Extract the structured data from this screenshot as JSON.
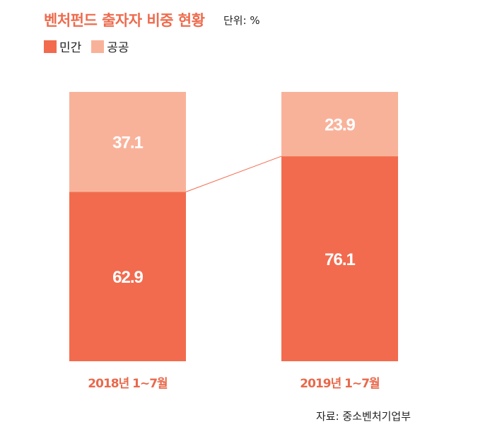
{
  "chart_data": {
    "type": "bar",
    "stacked": true,
    "title": "벤처펀드 출자자 비중 현황",
    "unit_label": "단위: %",
    "categories": [
      "2018년 1~7월",
      "2019년 1~7월"
    ],
    "series": [
      {
        "name": "민간",
        "values": [
          62.9,
          76.1
        ],
        "color": "#F26B4E"
      },
      {
        "name": "공공",
        "values": [
          37.1,
          23.9
        ],
        "color": "#F9B29A"
      }
    ],
    "ylim": [
      0,
      100
    ],
    "legend": "top-left",
    "source": "자료: 중소벤처기업부"
  },
  "colors": {
    "title": "#EE6B4D",
    "label": "#E8694C"
  }
}
